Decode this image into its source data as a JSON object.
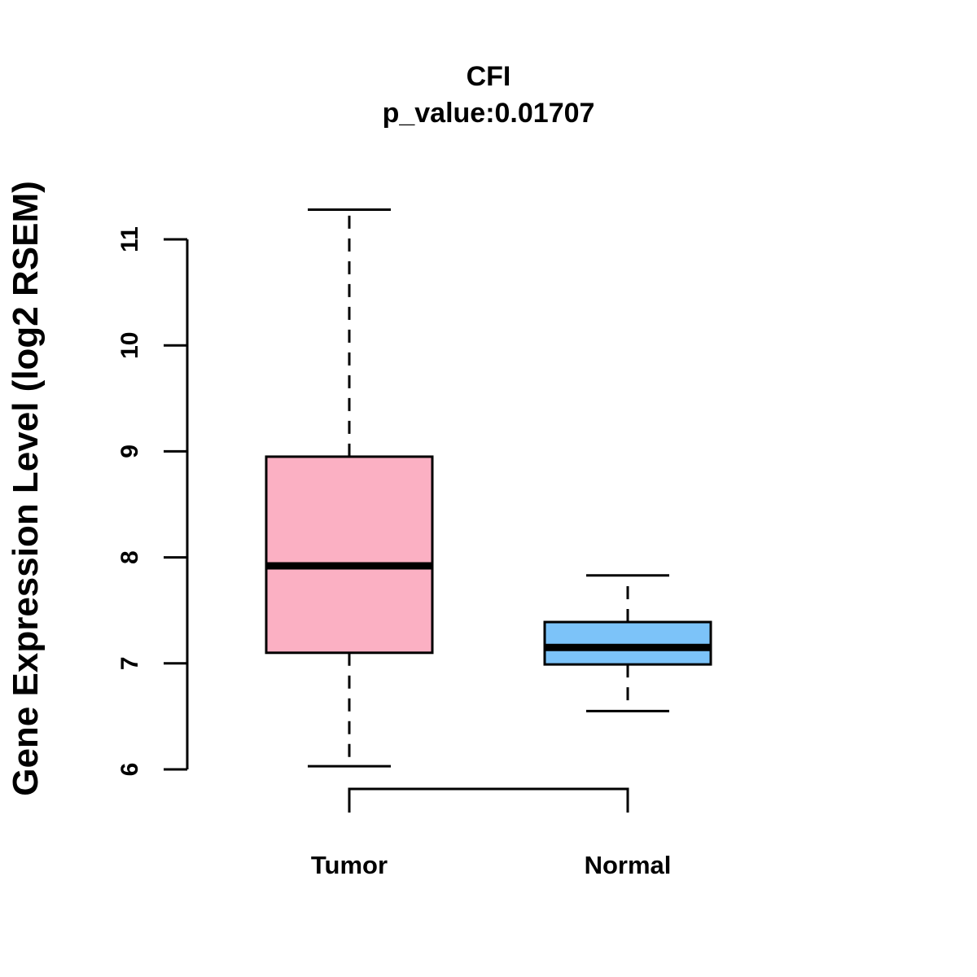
{
  "chart_data": {
    "type": "boxplot",
    "title": "CFI",
    "subtitle": "p_value:0.01707",
    "xlabel": "",
    "ylabel": "Gene Expression Level (log2 RSEM)",
    "ylim": [
      6,
      11
    ],
    "yticks": [
      6,
      7,
      8,
      9,
      10,
      11
    ],
    "grid": false,
    "categories": [
      "Tumor",
      "Normal"
    ],
    "series": [
      {
        "name": "Tumor",
        "color": "#FBB0C3",
        "min": 6.03,
        "q1": 7.1,
        "median": 7.92,
        "q3": 8.95,
        "max": 11.28
      },
      {
        "name": "Normal",
        "color": "#7CC3F9",
        "min": 6.55,
        "q1": 6.99,
        "median": 7.15,
        "q3": 7.39,
        "max": 7.83
      }
    ],
    "annotation": "bracket connecting Tumor and Normal"
  }
}
